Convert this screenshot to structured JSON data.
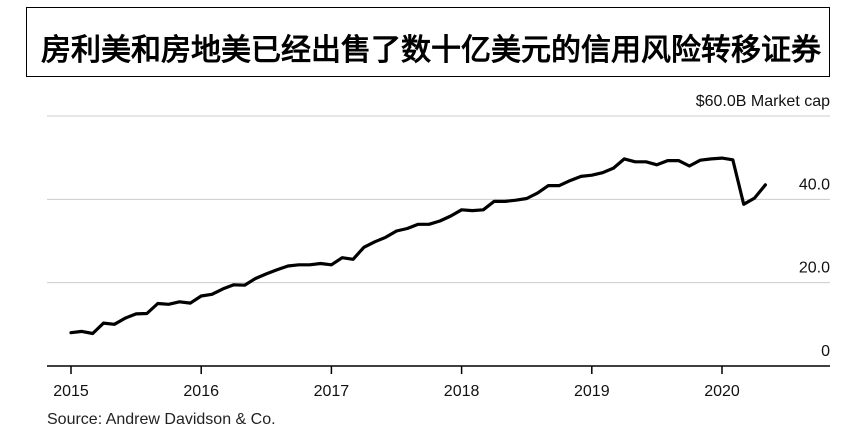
{
  "header": {
    "title": "房利美和房地美已经出售了数十亿美元的信用风险转移证券"
  },
  "footer": {
    "source": "Source: Andrew Davidson & Co."
  },
  "chart_data": {
    "type": "line",
    "title": "房利美和房地美已经出售了数十亿美元的信用风险转移证券",
    "ylabel": "Market cap",
    "y_tick_labels": [
      "0",
      "20.0",
      "40.0",
      "$60.0B Market cap"
    ],
    "y_ticks": [
      0,
      20,
      40,
      60
    ],
    "ylim": [
      0,
      60
    ],
    "x_tick_labels": [
      "2015",
      "2016",
      "2017",
      "2018",
      "2019",
      "2020"
    ],
    "x_ticks": [
      2015,
      2016,
      2017,
      2018,
      2019,
      2020
    ],
    "xlim": [
      2015,
      2021.2
    ],
    "grid": true,
    "colors": {
      "line": "#000000",
      "grid": "#cccccc",
      "axis": "#000000"
    },
    "series": [
      {
        "x": [
          2015.0,
          2015.083,
          2015.167,
          2015.25,
          2015.333,
          2015.417,
          2015.5,
          2015.583,
          2015.667,
          2015.75,
          2015.833,
          2015.917,
          2016.0,
          2016.083,
          2016.167,
          2016.25,
          2016.333,
          2016.417,
          2016.5,
          2016.583,
          2016.667,
          2016.75,
          2016.833,
          2016.917,
          2017.0,
          2017.083,
          2017.167,
          2017.25,
          2017.333,
          2017.417,
          2017.5,
          2017.583,
          2017.667,
          2017.75,
          2017.833,
          2017.917,
          2018.0,
          2018.083,
          2018.167,
          2018.25,
          2018.333,
          2018.417,
          2018.5,
          2018.583,
          2018.667,
          2018.75,
          2018.833,
          2018.917,
          2019.0,
          2019.083,
          2019.167,
          2019.25,
          2019.333,
          2019.417,
          2019.5,
          2019.583,
          2019.667,
          2019.75,
          2019.833,
          2019.917,
          2020.0,
          2020.083,
          2020.167,
          2020.25,
          2020.333
        ],
        "values": [
          8.0,
          8.3,
          7.8,
          10.3,
          10.0,
          11.5,
          12.5,
          12.6,
          15.0,
          14.8,
          15.4,
          15.1,
          16.8,
          17.2,
          18.5,
          19.5,
          19.4,
          21.0,
          22.1,
          23.1,
          24.0,
          24.3,
          24.3,
          24.6,
          24.3,
          26.0,
          25.6,
          28.5,
          29.8,
          30.9,
          32.4,
          33.0,
          34.0,
          34.0,
          34.8,
          36.0,
          37.5,
          37.3,
          37.5,
          39.5,
          39.5,
          39.8,
          40.2,
          41.5,
          43.3,
          43.3,
          44.5,
          45.5,
          45.8,
          46.4,
          47.5,
          49.7,
          49.0,
          49.0,
          48.3,
          49.3,
          49.3,
          48.0,
          49.4,
          49.7,
          49.9,
          49.5,
          38.8,
          40.3,
          43.5
        ]
      }
    ]
  }
}
